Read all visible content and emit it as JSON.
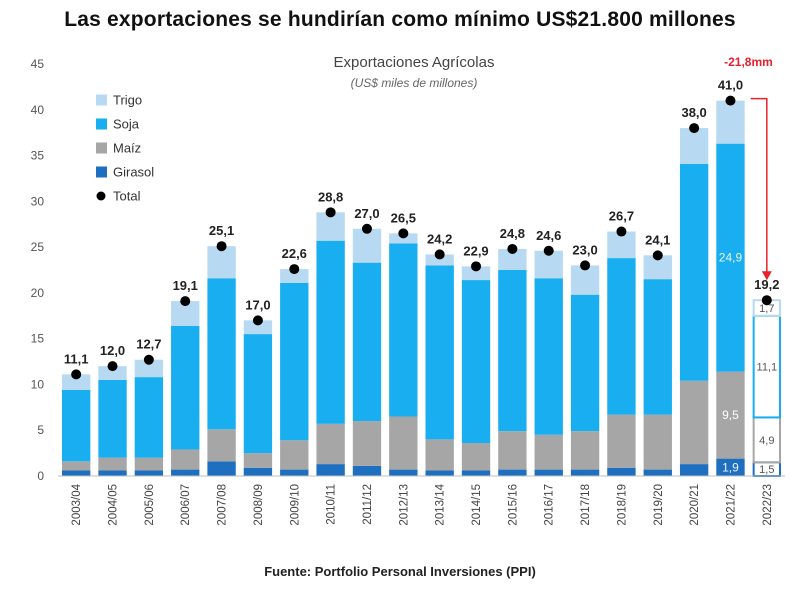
{
  "headline": "Las exportaciones se hundirían como mínimo US$21.800 millones",
  "source": "Fuente: Portfolio Personal Inversiones (PPI)",
  "chart_data": {
    "type": "bar",
    "stacked": true,
    "title": "Exportaciones Agrícolas",
    "subtitle": "(US$ miles de millones)",
    "xlabel": "",
    "ylabel": "",
    "ylim": [
      0,
      45
    ],
    "yticks": [
      "0",
      "5",
      "10",
      "15",
      "20",
      "25",
      "30",
      "35",
      "40",
      "45"
    ],
    "categories": [
      "2003/04",
      "2004/05",
      "2005/06",
      "2006/07",
      "2007/08",
      "2008/09",
      "2009/10",
      "2010/11",
      "2011/12",
      "2012/13",
      "2013/14",
      "2014/15",
      "2015/16",
      "2016/17",
      "2017/18",
      "2018/19",
      "2019/20",
      "2020/21",
      "2021/22",
      "2022/23"
    ],
    "series": [
      {
        "name": "Girasol",
        "color": "#1f6fc0",
        "values": [
          0.6,
          0.6,
          0.6,
          0.7,
          1.6,
          0.9,
          0.7,
          1.3,
          1.1,
          0.7,
          0.6,
          0.6,
          0.7,
          0.7,
          0.7,
          0.9,
          0.7,
          1.3,
          1.9,
          1.5
        ]
      },
      {
        "name": "Maíz",
        "color": "#a6a6a6",
        "values": [
          1.0,
          1.4,
          1.4,
          2.2,
          3.5,
          1.6,
          3.2,
          4.4,
          4.9,
          5.8,
          3.4,
          3.0,
          4.2,
          3.8,
          4.2,
          5.8,
          6.0,
          9.1,
          9.5,
          4.9
        ]
      },
      {
        "name": "Soja",
        "color": "#19aef0",
        "values": [
          7.8,
          8.5,
          8.8,
          13.5,
          16.5,
          13.0,
          17.2,
          20.0,
          17.3,
          18.9,
          19.0,
          17.8,
          17.6,
          17.1,
          14.9,
          17.1,
          14.8,
          23.7,
          24.9,
          11.1
        ]
      },
      {
        "name": "Trigo",
        "color": "#b7d9f2",
        "values": [
          1.7,
          1.5,
          1.9,
          2.7,
          3.5,
          1.5,
          1.5,
          3.1,
          3.7,
          1.1,
          1.2,
          1.5,
          2.3,
          3.0,
          3.2,
          2.9,
          2.6,
          3.9,
          4.7,
          1.7
        ]
      }
    ],
    "totals": [
      11.1,
      12.0,
      12.7,
      19.1,
      25.1,
      17.0,
      22.6,
      28.8,
      27.0,
      26.5,
      24.2,
      22.9,
      24.8,
      24.6,
      23.0,
      26.7,
      24.1,
      38.0,
      41.0,
      19.2
    ],
    "total_labels": [
      "11,1",
      "12,0",
      "12,7",
      "19,1",
      "25,1",
      "17,0",
      "22,6",
      "28,8",
      "27,0",
      "26,5",
      "24,2",
      "22,9",
      "24,8",
      "24,6",
      "23,0",
      "26,7",
      "24,1",
      "38,0",
      "41,0",
      "19,2"
    ],
    "segment_labels": [
      {
        "category": "2021/22",
        "series": "Soja",
        "text": "24,9"
      },
      {
        "category": "2021/22",
        "series": "Maíz",
        "text": "9,5"
      },
      {
        "category": "2021/22",
        "series": "Girasol",
        "text": "1,9"
      },
      {
        "category": "2022/23",
        "series": "Trigo",
        "text": "1,7"
      },
      {
        "category": "2022/23",
        "series": "Soja",
        "text": "11,1"
      },
      {
        "category": "2022/23",
        "series": "Maíz",
        "text": "4,9"
      },
      {
        "category": "2022/23",
        "series": "Girasol",
        "text": "1,5"
      }
    ],
    "projected_category": "2022/23",
    "legend": {
      "position": "top-left",
      "items": [
        {
          "label": "Trigo",
          "marker": "square",
          "color": "#b7d9f2"
        },
        {
          "label": "Soja",
          "marker": "square",
          "color": "#19aef0"
        },
        {
          "label": "Maíz",
          "marker": "square",
          "color": "#a6a6a6"
        },
        {
          "label": "Girasol",
          "marker": "square",
          "color": "#1f6fc0"
        },
        {
          "label": "Total",
          "marker": "dot",
          "color": "#000000"
        }
      ]
    },
    "annotation": {
      "text": "-21,8mm",
      "color": "#e8212b",
      "from_category": "2021/22",
      "to_category": "2022/23"
    }
  }
}
